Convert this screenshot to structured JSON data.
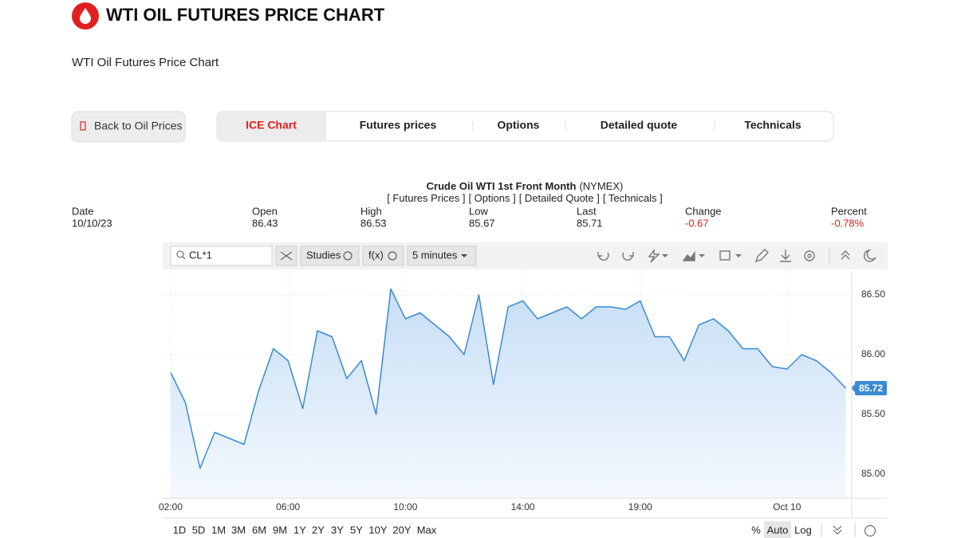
{
  "header": {
    "title": "WTI OIL FUTURES PRICE CHART",
    "subtitle": "WTI Oil Futures Price Chart"
  },
  "back_button": "Back to Oil Prices",
  "tabs": [
    "ICE Chart",
    "Futures prices",
    "Options",
    "Detailed quote",
    "Technicals"
  ],
  "quote": {
    "name": "Crude Oil WTI 1st Front Month",
    "exchange": "(NYMEX)",
    "links": [
      "[ Futures Prices ]",
      "[ Options ]",
      "[ Detailed Quote ]",
      "[ Technicals ]"
    ],
    "fields": [
      {
        "label": "Date",
        "value": "10/10/23"
      },
      {
        "label": "Open",
        "value": 86.43
      },
      {
        "label": "High",
        "value": 86.53
      },
      {
        "label": "Low",
        "value": 85.67
      },
      {
        "label": "Last",
        "value": 85.71
      },
      {
        "label": "Change",
        "value": -0.67
      },
      {
        "label": "Percent",
        "value": "-0.78%"
      }
    ]
  },
  "toolbar": {
    "symbol": "CL*1",
    "studies": "Studies",
    "fx": "f(x)",
    "interval": "5 minutes"
  },
  "ranges": [
    "1D",
    "5D",
    "1M",
    "3M",
    "6M",
    "9M",
    "1Y",
    "2Y",
    "3Y",
    "5Y",
    "10Y",
    "20Y",
    "Max"
  ],
  "scale_options": [
    "%",
    "Auto",
    "Log"
  ],
  "chart_data": {
    "type": "line",
    "categories": [
      "02:00",
      null,
      null,
      null,
      null,
      null,
      null,
      null,
      "06:00",
      null,
      null,
      null,
      null,
      null,
      null,
      null,
      "10:00",
      null,
      null,
      null,
      null,
      null,
      null,
      null,
      "14:00",
      null,
      null,
      null,
      null,
      null,
      null,
      null,
      "19:00",
      null,
      null,
      null,
      null,
      null,
      null,
      null,
      null,
      null,
      "Oct 10",
      null,
      null,
      null,
      null
    ],
    "series": [
      {
        "name": "CL*1",
        "color": "#3a8ad4",
        "values": [
          85.85,
          85.6,
          85.05,
          85.35,
          85.3,
          85.25,
          85.7,
          86.05,
          85.95,
          85.55,
          86.2,
          86.15,
          85.8,
          85.95,
          85.5,
          86.55,
          86.3,
          86.35,
          86.25,
          86.15,
          86.0,
          86.5,
          85.75,
          86.4,
          86.45,
          86.3,
          86.35,
          86.4,
          86.3,
          86.4,
          86.4,
          86.38,
          86.45,
          86.15,
          86.15,
          85.95,
          86.25,
          86.3,
          86.2,
          86.05,
          86.05,
          85.9,
          85.88,
          86.0,
          85.95,
          85.85,
          85.72
        ]
      }
    ],
    "ylim": [
      84.8,
      86.7
    ],
    "yticks": [
      {
        "value": 85,
        "label": "85.00"
      },
      {
        "value": 85.5,
        "label": "85.50"
      },
      {
        "value": 86,
        "label": "86.00"
      },
      {
        "value": 86.5,
        "label": "86.50"
      }
    ],
    "grid": true
  }
}
